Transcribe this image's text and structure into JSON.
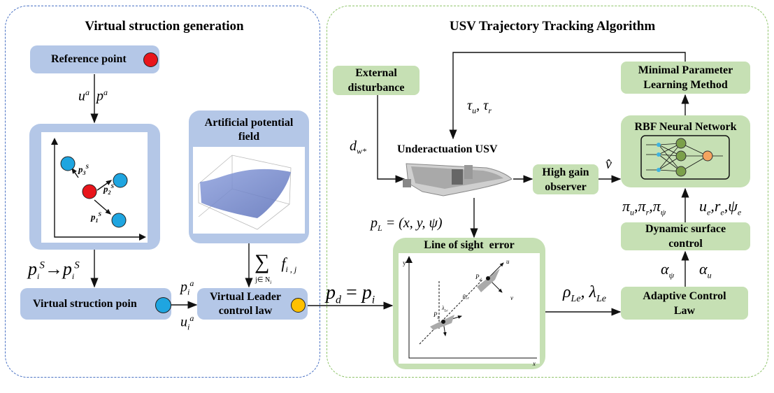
{
  "left_panel": {
    "title": "Virtual struction generation",
    "reference_point": "Reference point",
    "label_ua_pa": {
      "u": "u",
      "u_sup": "a",
      "p": "p",
      "p_sup": "a"
    },
    "scatter_labels": {
      "p3": "p",
      "p3_sub": "3",
      "p3_sup": "S",
      "p2": "p",
      "p2_sub": "2",
      "p2_sup": "S",
      "p1": "p",
      "p1_sub": "1",
      "p1_sup": "S"
    },
    "mapping_label": {
      "left": "p",
      "left_sub": "i",
      "left_sup": "S",
      "arrow": "→",
      "right": "p",
      "right_sub": "i",
      "right_sup": "S"
    },
    "apf_title": "Artificial potential field",
    "sum_label": {
      "sigma": "∑",
      "under": "j∈ N",
      "under_sub": "i",
      "f": "f",
      "f_sub": "i , j"
    },
    "virtual_struction_point": "Virtual struction poin",
    "pia": {
      "p": "p",
      "sub": "i",
      "sup": "a"
    },
    "uia": {
      "u": "u",
      "sub": "i",
      "sup": "a"
    },
    "virtual_leader": "Virtual Leader control law"
  },
  "right_panel": {
    "title": "USV Trajectory Tracking Algorithm",
    "external_disturbance": "External disturbance",
    "dw": {
      "d": "d",
      "sub": "w*"
    },
    "tau": {
      "t1": "τ",
      "t1_sub": "u",
      "sep": ", ",
      "t2": "τ",
      "t2_sub": "r"
    },
    "usv_label": "Underactuation USV",
    "high_gain": "High gain observer",
    "vhat": "v̂",
    "rbf": "RBF Neural Network",
    "minimal": "Minimal Parameter Learning Method",
    "pl": "p",
    "pl_sub": "L",
    "pl_rest": " = (x, y, ψ)",
    "los": "Line of sight  error",
    "los_labels": {
      "y": "y",
      "x": "x",
      "u": "u",
      "v": "v",
      "pd": "P",
      "pd_sub": "d",
      "pl": "P",
      "pl_sub": "L",
      "rho": "ρ",
      "rho_sub": "Le",
      "lam": "λ",
      "lam_sub": "Le"
    },
    "pd_eq": {
      "p": "p",
      "sub": "d",
      "eq": " = ",
      "pi": "p",
      "pi_sub": "i"
    },
    "rho_lambda": {
      "rho": "ρ",
      "rho_sub": "Le",
      "sep": ", ",
      "lam": "λ",
      "lam_sub": "Le"
    },
    "adaptive": "Adaptive Control Law",
    "alpha": {
      "a1": "α",
      "a1_sub": "ψ",
      "a2": "α",
      "a2_sub": "u"
    },
    "dynamic": "Dynamic surface control",
    "pi_label": {
      "a": "π",
      "a_sub": "u",
      "b": "π",
      "b_sub": "r",
      "c": "π",
      "c_sub": "ψ"
    },
    "err_label": {
      "a": "u",
      "a_sub": "e",
      "b": "r",
      "b_sub": "e",
      "c": "ψ",
      "c_sub": "e"
    }
  },
  "colors": {
    "blue_box": "#b4c7e7",
    "green_box": "#c6e0b4",
    "red": "#e8151b",
    "cyan": "#1fa5e0",
    "yellow": "#ffc000",
    "orange": "#f4a460"
  }
}
